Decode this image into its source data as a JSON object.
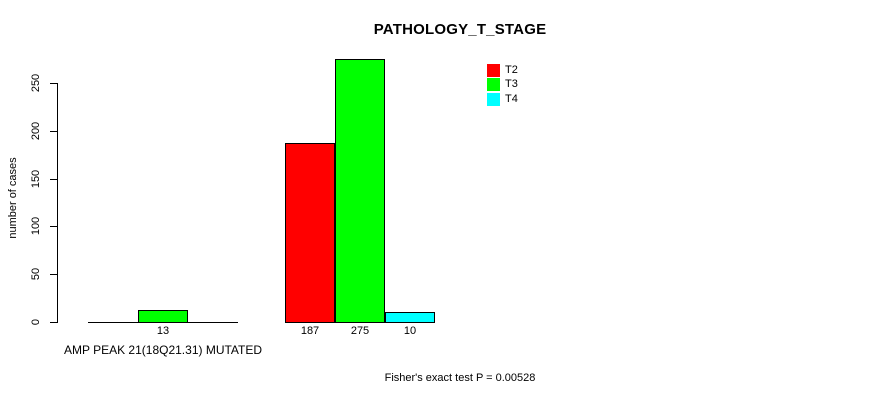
{
  "chart_data": {
    "type": "bar",
    "title": "PATHOLOGY_T_STAGE",
    "ylabel": "number of cases",
    "xlabel": "AMP PEAK 21(18Q21.31) MUTATED",
    "categories": [
      "AMP PEAK 21(18Q21.31) MUTATED",
      ""
    ],
    "series": [
      {
        "name": "T2",
        "color": "#ff0000",
        "values": [
          0,
          187
        ]
      },
      {
        "name": "T3",
        "color": "#00ff00",
        "values": [
          13,
          275
        ]
      },
      {
        "name": "T4",
        "color": "#00ffff",
        "values": [
          0,
          10
        ]
      }
    ],
    "bar_value_labels": [
      [
        null,
        "13",
        null
      ],
      [
        "187",
        "275",
        "10"
      ]
    ],
    "yticks": [
      "0",
      "50",
      "100",
      "150",
      "200",
      "250"
    ],
    "ylim": [
      0,
      280
    ],
    "grid": false,
    "legend_position": "top-right",
    "legend_entries": [
      "T2",
      "T3",
      "T4"
    ],
    "annotation": "Fisher's exact test P = 0.00528",
    "axis_color": "#000000",
    "bar_border_color": "#000000"
  }
}
